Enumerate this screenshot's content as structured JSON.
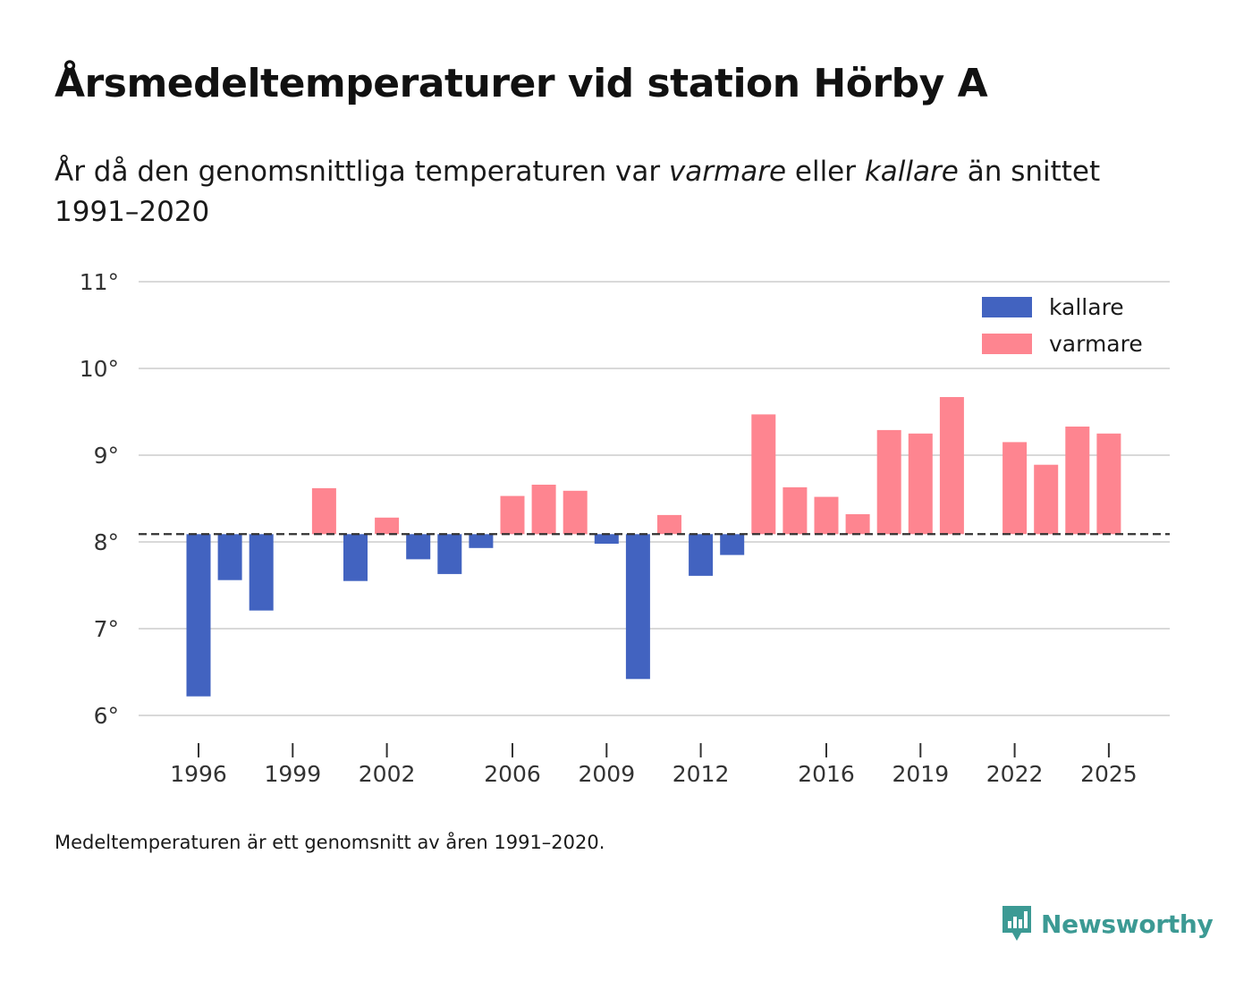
{
  "title": "Årsmedeltemperaturer vid station Hörby A",
  "subtitle": {
    "part1": "År då den genomsnittliga temperaturen var ",
    "warmer": "varmare",
    "part2": " eller ",
    "colder": "kallare",
    "part3": " än snittet 1991–2020"
  },
  "footnote": "Medeltemperaturen är ett genomsnitt av åren 1991–2020.",
  "brand": "Newsworthy",
  "colors": {
    "cold": "#4263c0",
    "warm": "#fe8590",
    "grid": "#d9d9d9",
    "baseline": "#333333",
    "brand": "#3c9a94"
  },
  "chart_data": {
    "type": "bar",
    "title": "Årsmedeltemperaturer vid station Hörby A",
    "xlabel": "",
    "ylabel": "",
    "ylim": [
      6,
      11
    ],
    "baseline": 8.09,
    "y_ticks": [
      {
        "value": 6,
        "label": "6°"
      },
      {
        "value": 7,
        "label": "7°"
      },
      {
        "value": 8,
        "label": "8°"
      },
      {
        "value": 9,
        "label": "9°"
      },
      {
        "value": 10,
        "label": "10°"
      },
      {
        "value": 11,
        "label": "11°"
      }
    ],
    "x_ticks": [
      1996,
      1999,
      2002,
      2006,
      2009,
      2012,
      2016,
      2019,
      2022,
      2025
    ],
    "legend": [
      {
        "key": "cold",
        "label": "kallare"
      },
      {
        "key": "warm",
        "label": "varmare"
      }
    ],
    "legend_position": "top-right",
    "series": [
      {
        "year": 1996,
        "value": 6.22
      },
      {
        "year": 1997,
        "value": 7.56
      },
      {
        "year": 1998,
        "value": 7.21
      },
      {
        "year": 1999,
        "value": null
      },
      {
        "year": 2000,
        "value": 8.62
      },
      {
        "year": 2001,
        "value": 7.55
      },
      {
        "year": 2002,
        "value": 8.28
      },
      {
        "year": 2003,
        "value": 7.8
      },
      {
        "year": 2004,
        "value": 7.63
      },
      {
        "year": 2005,
        "value": 7.93
      },
      {
        "year": 2006,
        "value": 8.53
      },
      {
        "year": 2007,
        "value": 8.66
      },
      {
        "year": 2008,
        "value": 8.59
      },
      {
        "year": 2009,
        "value": 7.98
      },
      {
        "year": 2010,
        "value": 6.42
      },
      {
        "year": 2011,
        "value": 8.31
      },
      {
        "year": 2012,
        "value": 7.61
      },
      {
        "year": 2013,
        "value": 7.85
      },
      {
        "year": 2014,
        "value": 9.47
      },
      {
        "year": 2015,
        "value": 8.63
      },
      {
        "year": 2016,
        "value": 8.52
      },
      {
        "year": 2017,
        "value": 8.32
      },
      {
        "year": 2018,
        "value": 9.29
      },
      {
        "year": 2019,
        "value": 9.25
      },
      {
        "year": 2020,
        "value": 9.67
      },
      {
        "year": 2021,
        "value": null
      },
      {
        "year": 2022,
        "value": 9.15
      },
      {
        "year": 2023,
        "value": 8.89
      },
      {
        "year": 2024,
        "value": 9.33
      },
      {
        "year": 2025,
        "value": 9.25
      }
    ]
  }
}
